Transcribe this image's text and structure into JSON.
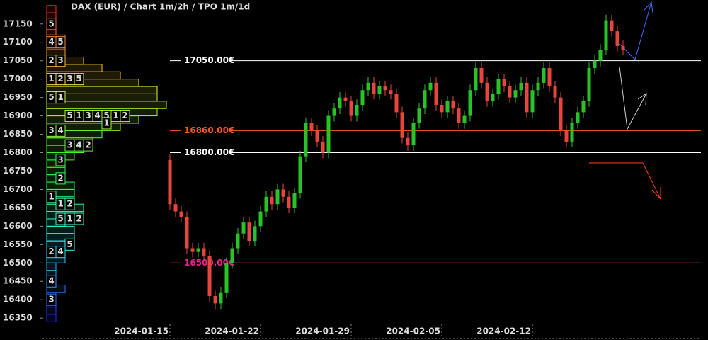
{
  "chart_data": {
    "type": "candlestick",
    "title": "DAX (EUR) /  Chart 1m/2h / TPO 1m/1d",
    "categories": [
      "2024-01-15",
      null,
      null,
      null,
      null,
      null,
      null,
      null,
      null,
      null,
      null,
      null,
      null,
      null,
      null,
      null,
      "2024-01-22",
      null,
      null,
      null,
      null,
      null,
      null,
      null,
      null,
      null,
      null,
      null,
      null,
      null,
      null,
      null,
      "2024-01-29",
      null,
      null,
      null,
      null,
      null,
      null,
      null,
      null,
      null,
      null,
      null,
      null,
      null,
      null,
      null,
      "2024-02-05",
      null,
      null,
      null,
      null,
      null,
      null,
      null,
      null,
      null,
      null,
      null,
      null,
      null,
      null,
      null,
      "2024-02-12",
      null,
      null,
      null,
      null,
      null,
      null,
      null,
      null,
      null,
      null,
      null,
      null,
      null,
      null,
      null,
      null
    ],
    "open": [
      16780,
      16660,
      16640,
      16625,
      16540,
      16530,
      16540,
      16520,
      16410,
      16390,
      16420,
      16500,
      16540,
      16580,
      16610,
      16560,
      16600,
      16640,
      16680,
      16660,
      16700,
      16680,
      16650,
      16690,
      16790,
      16880,
      16860,
      16830,
      16800,
      16900,
      16920,
      16950,
      16940,
      16900,
      16930,
      16970,
      16990,
      16960,
      16980,
      16970,
      16960,
      16910,
      16840,
      16820,
      16880,
      16920,
      16970,
      16990,
      16930,
      16910,
      16940,
      16920,
      16880,
      16900,
      16970,
      17030,
      16990,
      16940,
      16960,
      17000,
      16980,
      16950,
      16970,
      16990,
      16910,
      16970,
      16990,
      17030,
      16980,
      16950,
      16860,
      16830,
      16880,
      16910,
      16940,
      17030,
      17050,
      17080,
      17160,
      17130,
      17090
    ],
    "high": [
      16795,
      16675,
      16655,
      16640,
      16555,
      16555,
      16555,
      16535,
      16425,
      16435,
      16515,
      16555,
      16595,
      16625,
      16625,
      16615,
      16655,
      16695,
      16695,
      16715,
      16715,
      16695,
      16705,
      16805,
      16895,
      16895,
      16875,
      16845,
      16915,
      16935,
      16965,
      16965,
      16955,
      16945,
      16985,
      17005,
      17005,
      16995,
      16995,
      16985,
      16975,
      16925,
      16855,
      16895,
      16935,
      16985,
      17005,
      17005,
      16945,
      16955,
      16955,
      16935,
      16915,
      16985,
      17045,
      17045,
      17005,
      16975,
      17015,
      17015,
      16995,
      16985,
      17005,
      17005,
      16985,
      17005,
      17045,
      17045,
      16995,
      16965,
      16875,
      16895,
      16925,
      16955,
      17045,
      17065,
      17095,
      17175,
      17175,
      17145,
      17105
    ],
    "low": [
      16645,
      16625,
      16610,
      16525,
      16515,
      16515,
      16505,
      16395,
      16375,
      16375,
      16405,
      16485,
      16525,
      16565,
      16545,
      16545,
      16585,
      16625,
      16645,
      16645,
      16665,
      16635,
      16635,
      16675,
      16775,
      16845,
      16815,
      16785,
      16785,
      16885,
      16905,
      16925,
      16885,
      16885,
      16915,
      16955,
      16945,
      16945,
      16955,
      16945,
      16895,
      16825,
      16805,
      16805,
      16865,
      16905,
      16955,
      16915,
      16895,
      16895,
      16905,
      16865,
      16865,
      16885,
      16955,
      16975,
      16925,
      16925,
      16945,
      16965,
      16935,
      16935,
      16955,
      16895,
      16895,
      16955,
      16975,
      16965,
      16935,
      16845,
      16815,
      16815,
      16865,
      16895,
      16925,
      17015,
      17035,
      17065,
      17115,
      17075,
      17065
    ],
    "close": [
      16660,
      16640,
      16625,
      16540,
      16530,
      16540,
      16520,
      16410,
      16390,
      16420,
      16500,
      16540,
      16580,
      16610,
      16560,
      16600,
      16640,
      16680,
      16660,
      16700,
      16680,
      16650,
      16690,
      16790,
      16880,
      16860,
      16830,
      16800,
      16900,
      16920,
      16950,
      16940,
      16900,
      16930,
      16970,
      16990,
      16960,
      16980,
      16970,
      16960,
      16910,
      16840,
      16820,
      16880,
      16920,
      16970,
      16990,
      16930,
      16910,
      16940,
      16920,
      16880,
      16900,
      16970,
      17030,
      16990,
      16940,
      16960,
      17000,
      16980,
      16950,
      16970,
      16990,
      16910,
      16970,
      16990,
      17030,
      16980,
      16950,
      16860,
      16830,
      16880,
      16910,
      16940,
      17030,
      17050,
      17080,
      17160,
      17130,
      17090,
      17080
    ],
    "up_color": "#29c329",
    "down_color": "#e8453c",
    "ylim": [
      16333,
      17215
    ],
    "yticks": [
      16350,
      16400,
      16450,
      16500,
      16550,
      16600,
      16650,
      16700,
      16750,
      16800,
      16850,
      16900,
      16950,
      17000,
      17050,
      17100,
      17150
    ],
    "levels": [
      {
        "value": 17050,
        "label": "17050.00€",
        "color": "#ffffff"
      },
      {
        "value": 16860,
        "label": "16860.00€",
        "color": "#ff5a1f"
      },
      {
        "value": 16800,
        "label": "16800.00€",
        "color": "#ffffff"
      },
      {
        "value": 16500,
        "label": "16500.00€",
        "color": "#e8208c"
      }
    ],
    "profile": {
      "prices": [
        17190,
        17170,
        17150,
        17130,
        17110,
        17090,
        17070,
        17050,
        17030,
        17010,
        16990,
        16970,
        16950,
        16930,
        16910,
        16890,
        16870,
        16850,
        16830,
        16810,
        16790,
        16770,
        16750,
        16730,
        16710,
        16690,
        16670,
        16650,
        16630,
        16610,
        16590,
        16570,
        16550,
        16530,
        16510,
        16490,
        16470,
        16450,
        16430,
        16410,
        16390,
        16370,
        16350
      ],
      "counts": [
        1,
        1,
        1,
        1,
        2,
        2,
        2,
        4,
        6,
        8,
        10,
        12,
        12,
        13,
        12,
        10,
        8,
        6,
        5,
        4,
        3,
        2,
        2,
        2,
        3,
        3,
        3,
        4,
        3,
        2,
        3,
        3,
        3,
        2,
        2,
        1,
        1,
        1,
        2,
        1,
        1,
        1,
        1
      ]
    },
    "tpo_labels": [
      {
        "price": 17150,
        "text": [
          "5"
        ]
      },
      {
        "price": 17100,
        "text": [
          "4",
          "5"
        ]
      },
      {
        "price": 17050,
        "text": [
          "2",
          "3"
        ]
      },
      {
        "price": 17000,
        "text": [
          "1",
          "2",
          "3",
          "5"
        ]
      },
      {
        "price": 16950,
        "text": [
          "5",
          "1"
        ]
      },
      {
        "price": 16900,
        "text": [
          "",
          "",
          "5",
          "1",
          "3",
          "4",
          "5",
          "1",
          "2"
        ]
      },
      {
        "price": 16880,
        "text": [
          "",
          "",
          "",
          "",
          "",
          "",
          "1"
        ]
      },
      {
        "price": 16860,
        "text": [
          "3",
          "4"
        ]
      },
      {
        "price": 16820,
        "text": [
          "",
          "",
          "3",
          "4",
          "2"
        ]
      },
      {
        "price": 16780,
        "text": [
          "",
          "3"
        ]
      },
      {
        "price": 16730,
        "text": [
          "",
          "2"
        ]
      },
      {
        "price": 16680,
        "text": [
          "1"
        ]
      },
      {
        "price": 16660,
        "text": [
          "",
          "1",
          "2"
        ]
      },
      {
        "price": 16620,
        "text": [
          "",
          "5",
          "1",
          "2"
        ]
      },
      {
        "price": 16550,
        "text": [
          "",
          "",
          "5"
        ]
      },
      {
        "price": 16530,
        "text": [
          "2",
          "4"
        ]
      },
      {
        "price": 16450,
        "text": [
          "4"
        ]
      },
      {
        "price": 16400,
        "text": [
          "3"
        ]
      }
    ]
  }
}
